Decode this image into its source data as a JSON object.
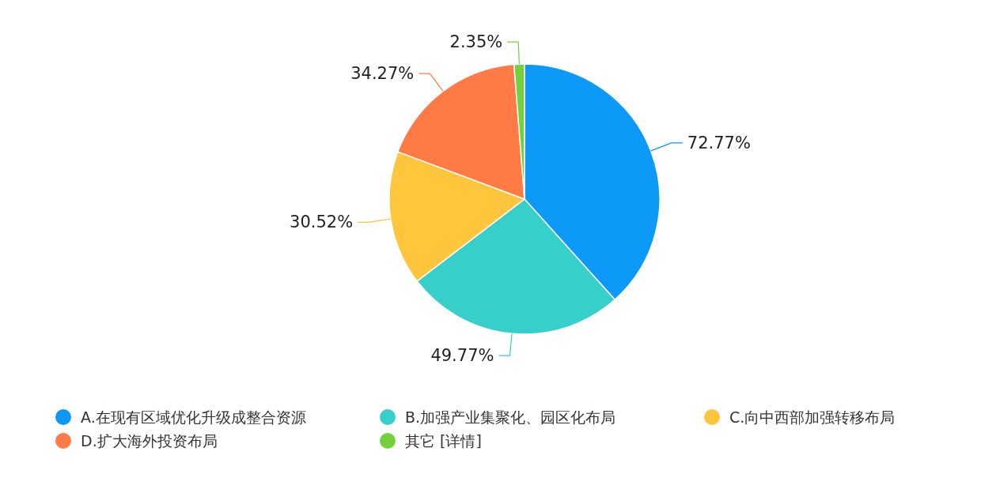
{
  "chart_data": {
    "type": "pie",
    "categories": [
      "A.在现有区域优化升级成整合资源",
      "B.加强产业集聚化、园区化布局",
      "C.向中西部加强转移布局",
      "D.扩大海外投资布局",
      "其它  [详情]"
    ],
    "values": [
      72.77,
      49.77,
      30.52,
      34.27,
      2.35
    ],
    "colors": [
      "#0c99f8",
      "#36cfc9",
      "#ffc53d",
      "#ff7a45",
      "#73d13d"
    ],
    "value_labels": [
      "72.77%",
      "49.77%",
      "30.52%",
      "34.27%",
      "2.35%"
    ],
    "legend": "bottom"
  }
}
